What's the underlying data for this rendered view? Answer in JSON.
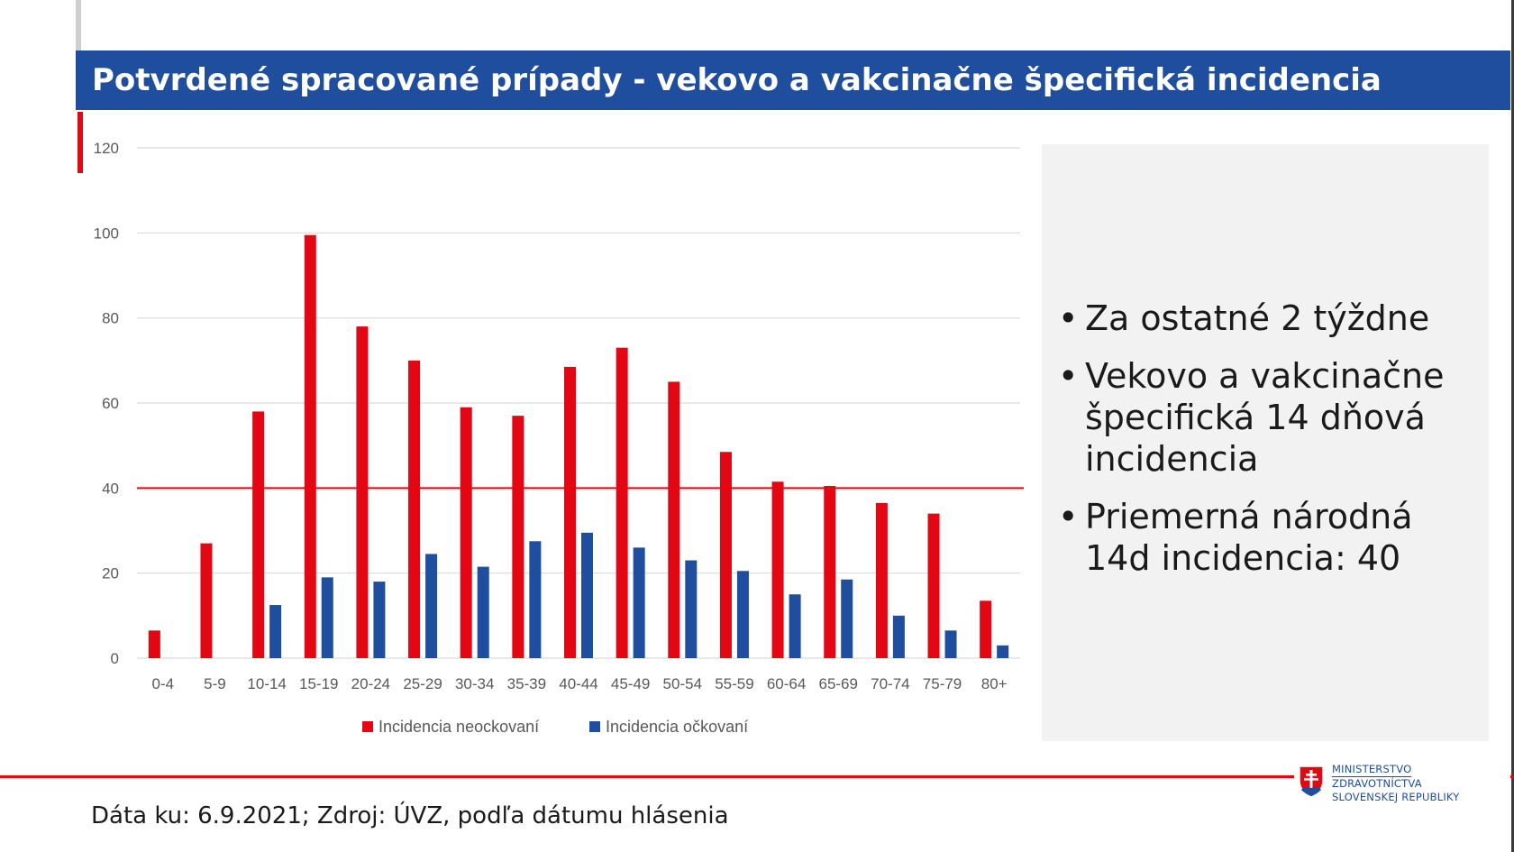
{
  "slide_title": "Potvrdené spracované prípady - vekovo a vakcinačne špecifická incidencia",
  "colors": {
    "title_bar": "#1f4e9e",
    "unvaccinated": "#e30613",
    "vaccinated": "#1f4e9e",
    "reference_line": "#e30613",
    "panel_bg": "#f2f2f2"
  },
  "chart_data": {
    "type": "bar",
    "title": "",
    "xlabel": "",
    "ylabel": "",
    "ylim": [
      0,
      120
    ],
    "yticks": [
      0,
      20,
      40,
      60,
      80,
      100,
      120
    ],
    "categories": [
      "0-4",
      "5-9",
      "10-14",
      "15-19",
      "20-24",
      "25-29",
      "30-34",
      "35-39",
      "40-44",
      "45-49",
      "50-54",
      "55-59",
      "60-64",
      "65-69",
      "70-74",
      "75-79",
      "80+"
    ],
    "series": [
      {
        "name": "Incidencia neockovaní",
        "color": "#e30613",
        "values": [
          6.5,
          27,
          58,
          99.5,
          78,
          70,
          59,
          57,
          68.5,
          73,
          65,
          48.5,
          41.5,
          40.5,
          36.5,
          34,
          13.5
        ]
      },
      {
        "name": "Incidencia očkovaní",
        "color": "#1f4e9e",
        "values": [
          0,
          0,
          12.5,
          19,
          18,
          24.5,
          21.5,
          27.5,
          29.5,
          26,
          23,
          20.5,
          15,
          18.5,
          10,
          6.5,
          3
        ]
      }
    ],
    "reference_line": {
      "value": 40,
      "color": "#e30613"
    },
    "legend_position": "bottom-center",
    "grid": true
  },
  "side_panel": {
    "bullets": [
      "Za ostatné 2 týždne",
      "Vekovo a vakcinačne špecifická 14 dňová incidencia",
      "Priemerná národná 14d incidencia: 40"
    ],
    "bullet_glyph": "•"
  },
  "footer": {
    "source_note": "Dáta ku: 6.9.2021; Zdroj: ÚVZ, podľa dátumu hlásenia"
  },
  "logo": {
    "line1": "MINISTERSTVO",
    "line2": "ZDRAVOTNÍCTVA",
    "line3": "SLOVENSKEJ REPUBLIKY",
    "icon": "slovak-coat-of-arms-icon"
  }
}
